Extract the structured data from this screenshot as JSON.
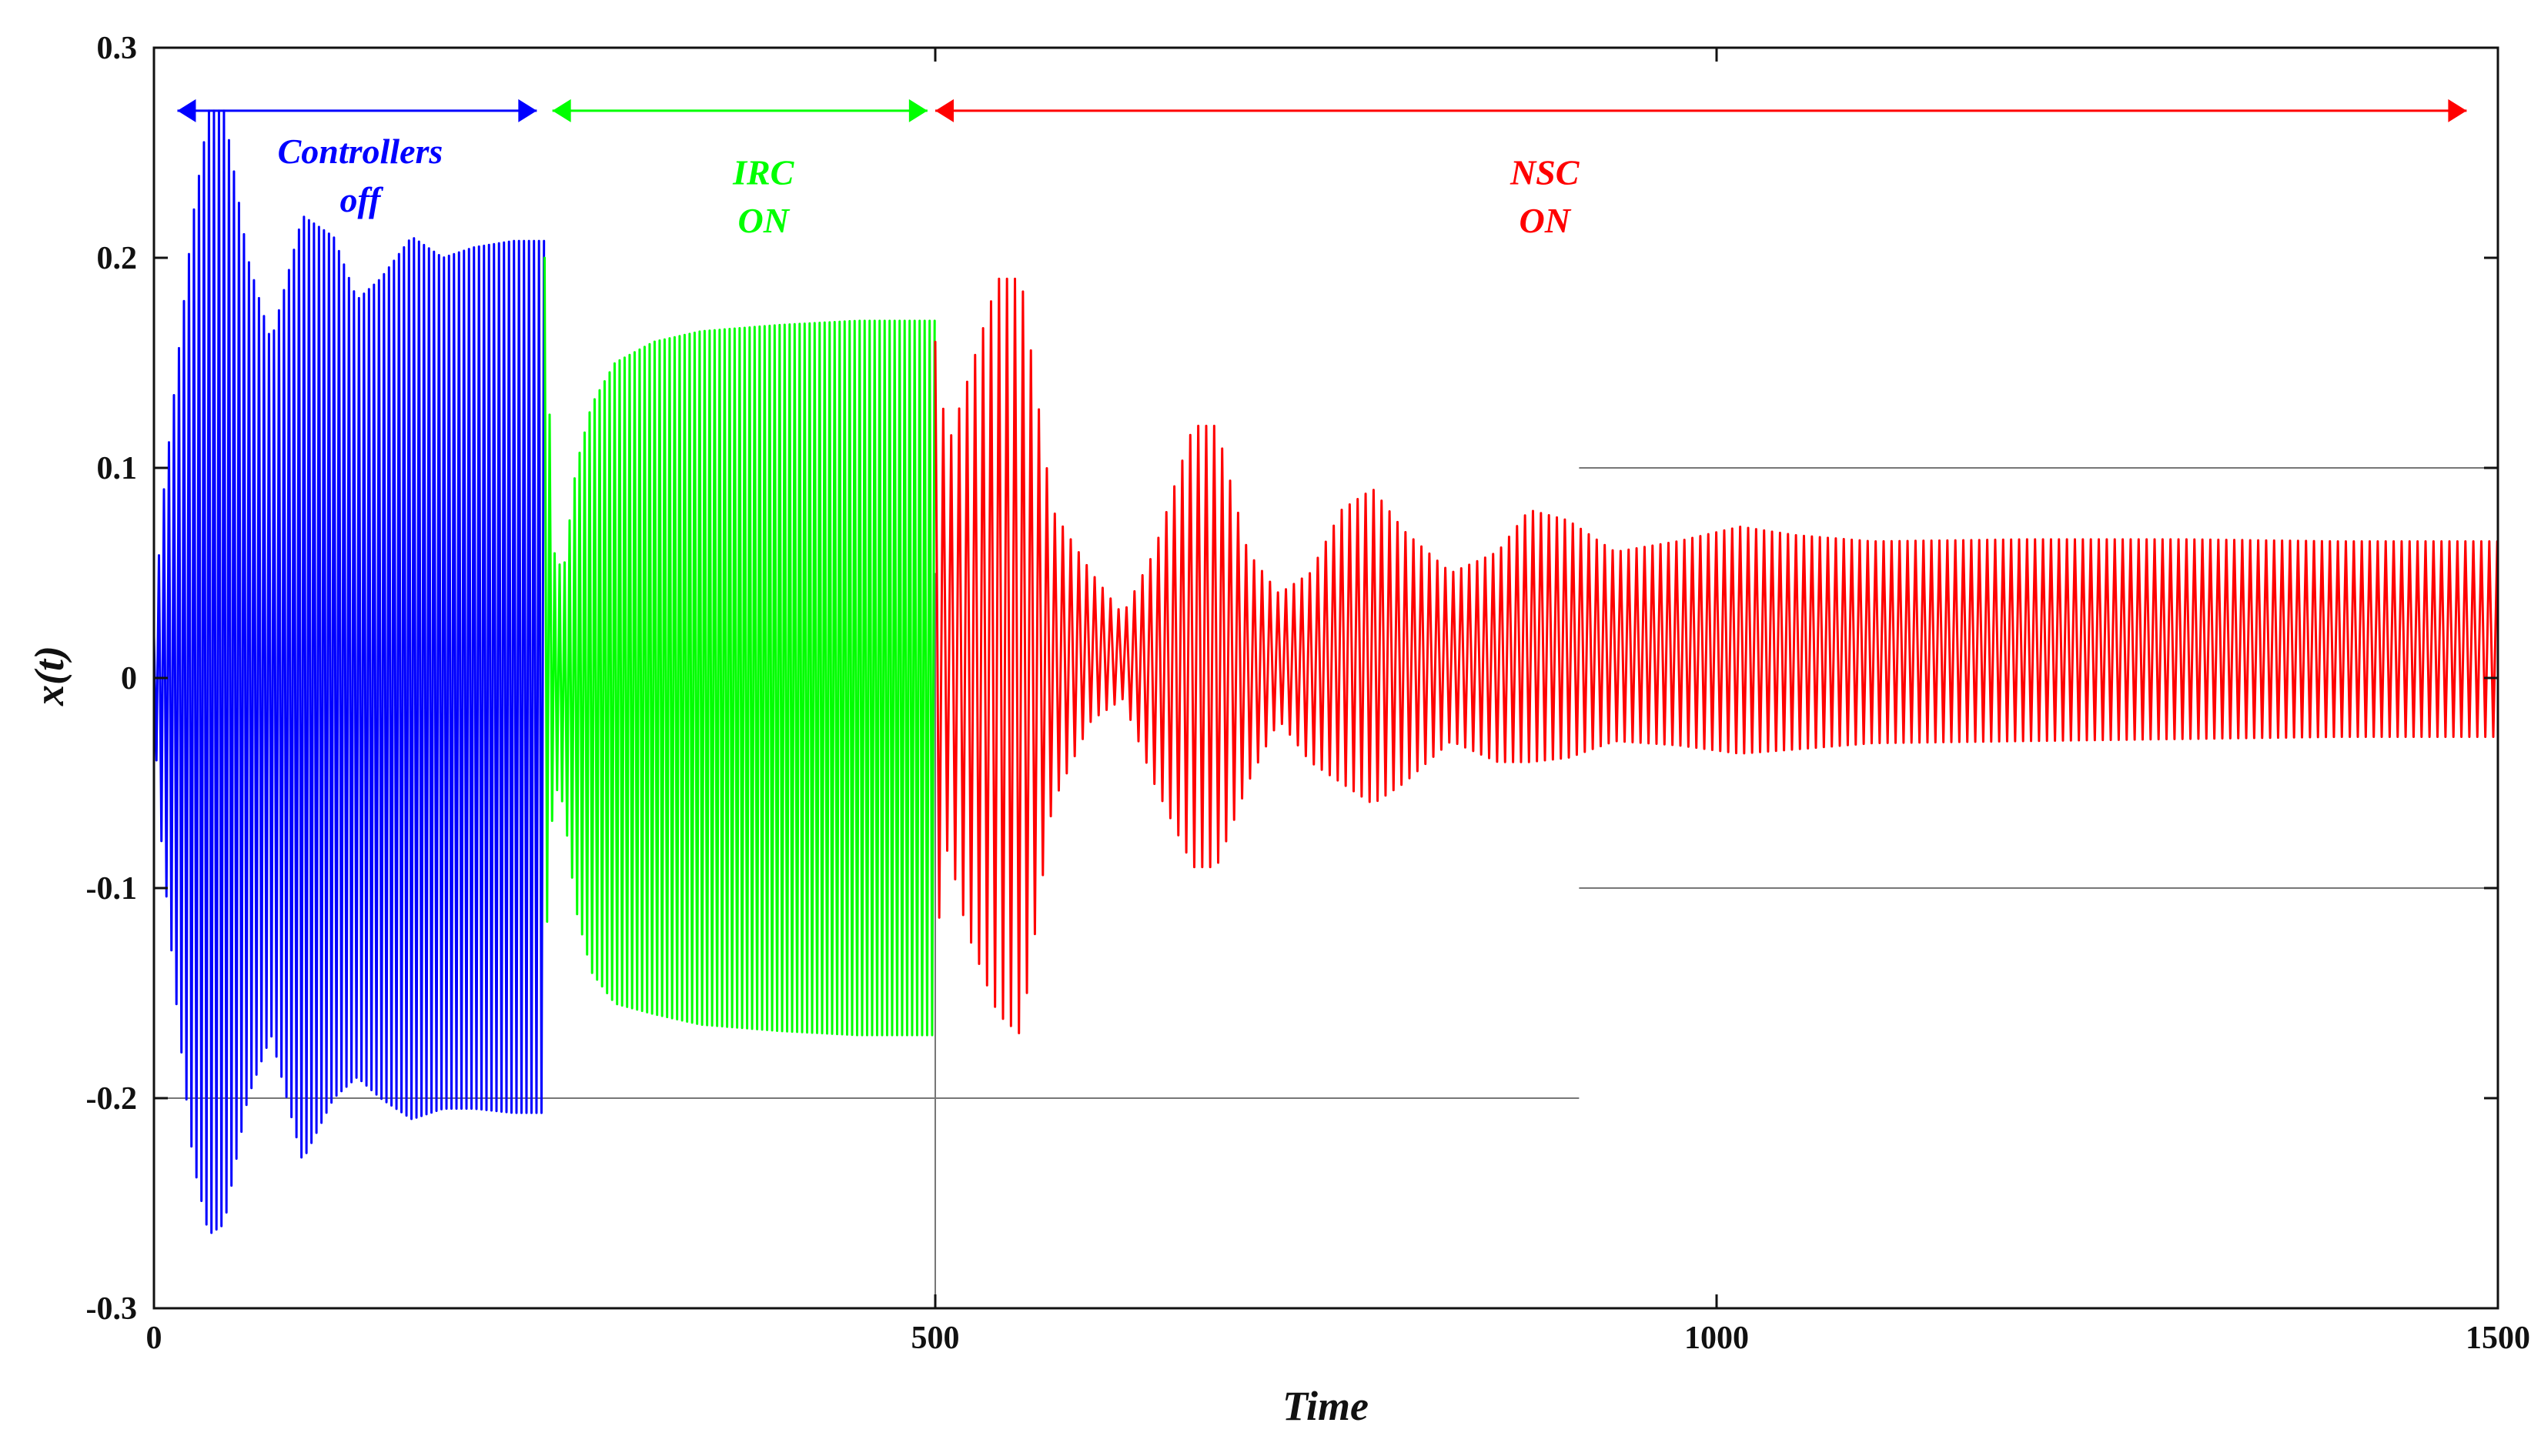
{
  "chart_data": {
    "type": "line",
    "xlabel": "Time",
    "ylabel": "x(t)",
    "xlim": [
      0,
      1500
    ],
    "ylim": [
      -0.3,
      0.3
    ],
    "xticks": [
      "0",
      "500",
      "1000",
      "1500"
    ],
    "yticks": [
      "0.3",
      "0.2",
      "0.1",
      "0",
      "-0.1",
      "-0.2",
      "-0.3"
    ],
    "xtick_values": [
      0,
      500,
      1000,
      1500
    ],
    "ytick_values": [
      0.3,
      0.2,
      0.1,
      0,
      -0.1,
      -0.2,
      -0.3
    ],
    "grid": false,
    "series": [
      {
        "name": "Controllers off",
        "color": "#0000ff",
        "x_range": [
          0,
          250
        ],
        "period": 3.2,
        "envelope_upper": [
          [
            0,
            0.02
          ],
          [
            5,
            0.08
          ],
          [
            15,
            0.15
          ],
          [
            25,
            0.22
          ],
          [
            35,
            0.27
          ],
          [
            45,
            0.27
          ],
          [
            60,
            0.2
          ],
          [
            75,
            0.16
          ],
          [
            95,
            0.22
          ],
          [
            115,
            0.21
          ],
          [
            130,
            0.18
          ],
          [
            145,
            0.19
          ],
          [
            165,
            0.21
          ],
          [
            185,
            0.2
          ],
          [
            205,
            0.205
          ],
          [
            230,
            0.208
          ],
          [
            250,
            0.208
          ]
        ],
        "envelope_lower": [
          [
            0,
            -0.02
          ],
          [
            5,
            -0.08
          ],
          [
            15,
            -0.16
          ],
          [
            25,
            -0.23
          ],
          [
            35,
            -0.265
          ],
          [
            45,
            -0.26
          ],
          [
            60,
            -0.2
          ],
          [
            75,
            -0.17
          ],
          [
            95,
            -0.23
          ],
          [
            115,
            -0.2
          ],
          [
            130,
            -0.19
          ],
          [
            145,
            -0.2
          ],
          [
            165,
            -0.21
          ],
          [
            185,
            -0.205
          ],
          [
            205,
            -0.205
          ],
          [
            230,
            -0.207
          ],
          [
            250,
            -0.207
          ]
        ]
      },
      {
        "name": "IRC ON",
        "color": "#00ff00",
        "x_range": [
          250,
          500
        ],
        "period": 3.2,
        "envelope_upper": [
          [
            250,
            0.2
          ],
          [
            256,
            0.06
          ],
          [
            262,
            0.05
          ],
          [
            270,
            0.1
          ],
          [
            280,
            0.13
          ],
          [
            295,
            0.15
          ],
          [
            320,
            0.16
          ],
          [
            350,
            0.165
          ],
          [
            400,
            0.168
          ],
          [
            450,
            0.17
          ],
          [
            500,
            0.17
          ]
        ],
        "envelope_lower": [
          [
            250,
            -0.14
          ],
          [
            256,
            -0.05
          ],
          [
            262,
            -0.06
          ],
          [
            270,
            -0.11
          ],
          [
            280,
            -0.14
          ],
          [
            295,
            -0.155
          ],
          [
            320,
            -0.16
          ],
          [
            350,
            -0.165
          ],
          [
            400,
            -0.168
          ],
          [
            450,
            -0.17
          ],
          [
            500,
            -0.17
          ]
        ]
      },
      {
        "name": "NSC ON",
        "color": "#ff0000",
        "x_range": [
          500,
          1500
        ],
        "period": 5.1,
        "envelope_upper": [
          [
            500,
            0.16
          ],
          [
            508,
            0.11
          ],
          [
            520,
            0.14
          ],
          [
            540,
            0.19
          ],
          [
            555,
            0.19
          ],
          [
            575,
            0.08
          ],
          [
            600,
            0.05
          ],
          [
            620,
            0.03
          ],
          [
            640,
            0.06
          ],
          [
            665,
            0.12
          ],
          [
            680,
            0.12
          ],
          [
            700,
            0.06
          ],
          [
            720,
            0.04
          ],
          [
            740,
            0.05
          ],
          [
            760,
            0.08
          ],
          [
            780,
            0.09
          ],
          [
            800,
            0.07
          ],
          [
            830,
            0.05
          ],
          [
            860,
            0.06
          ],
          [
            880,
            0.08
          ],
          [
            905,
            0.075
          ],
          [
            935,
            0.06
          ],
          [
            975,
            0.065
          ],
          [
            1015,
            0.072
          ],
          [
            1050,
            0.068
          ],
          [
            1100,
            0.065
          ],
          [
            1200,
            0.066
          ],
          [
            1300,
            0.066
          ],
          [
            1400,
            0.065
          ],
          [
            1500,
            0.065
          ]
        ],
        "envelope_lower": [
          [
            500,
            -0.13
          ],
          [
            508,
            -0.08
          ],
          [
            520,
            -0.12
          ],
          [
            540,
            -0.16
          ],
          [
            555,
            -0.17
          ],
          [
            575,
            -0.06
          ],
          [
            600,
            -0.02
          ],
          [
            620,
            -0.01
          ],
          [
            640,
            -0.05
          ],
          [
            665,
            -0.09
          ],
          [
            680,
            -0.09
          ],
          [
            700,
            -0.05
          ],
          [
            720,
            -0.02
          ],
          [
            740,
            -0.04
          ],
          [
            760,
            -0.05
          ],
          [
            780,
            -0.06
          ],
          [
            800,
            -0.05
          ],
          [
            830,
            -0.03
          ],
          [
            860,
            -0.04
          ],
          [
            880,
            -0.04
          ],
          [
            905,
            -0.038
          ],
          [
            935,
            -0.03
          ],
          [
            975,
            -0.032
          ],
          [
            1015,
            -0.036
          ],
          [
            1050,
            -0.034
          ],
          [
            1100,
            -0.031
          ],
          [
            1200,
            -0.03
          ],
          [
            1300,
            -0.029
          ],
          [
            1400,
            -0.028
          ],
          [
            1500,
            -0.028
          ]
        ]
      }
    ],
    "guide_lines": [
      {
        "x1": 912,
        "x2": 1500,
        "y": 0.1
      },
      {
        "x1": 912,
        "x2": 1500,
        "y": -0.1
      },
      {
        "x1": 0,
        "x2": 912,
        "y": -0.2
      },
      {
        "x": 500,
        "y1": -0.3,
        "y2": 0.05
      }
    ],
    "annotations": [
      {
        "name": "controllers-off-arrow",
        "color": "#0000ff",
        "x1": 15,
        "x2": 245,
        "y": 0.27,
        "text_lines": [
          "Controllers",
          "off"
        ],
        "text_x": 132,
        "text_y": [
          0.245,
          0.222
        ]
      },
      {
        "name": "irc-on-arrow",
        "color": "#00ff00",
        "x1": 255,
        "x2": 495,
        "y": 0.27,
        "text_lines": [
          "IRC",
          "ON"
        ],
        "text_x": 390,
        "text_y": [
          0.235,
          0.212
        ]
      },
      {
        "name": "nsc-on-arrow",
        "color": "#ff0000",
        "x1": 500,
        "x2": 1480,
        "y": 0.27,
        "text_lines": [
          "NSC",
          "ON"
        ],
        "text_x": 890,
        "text_y": [
          0.235,
          0.212
        ]
      }
    ]
  }
}
